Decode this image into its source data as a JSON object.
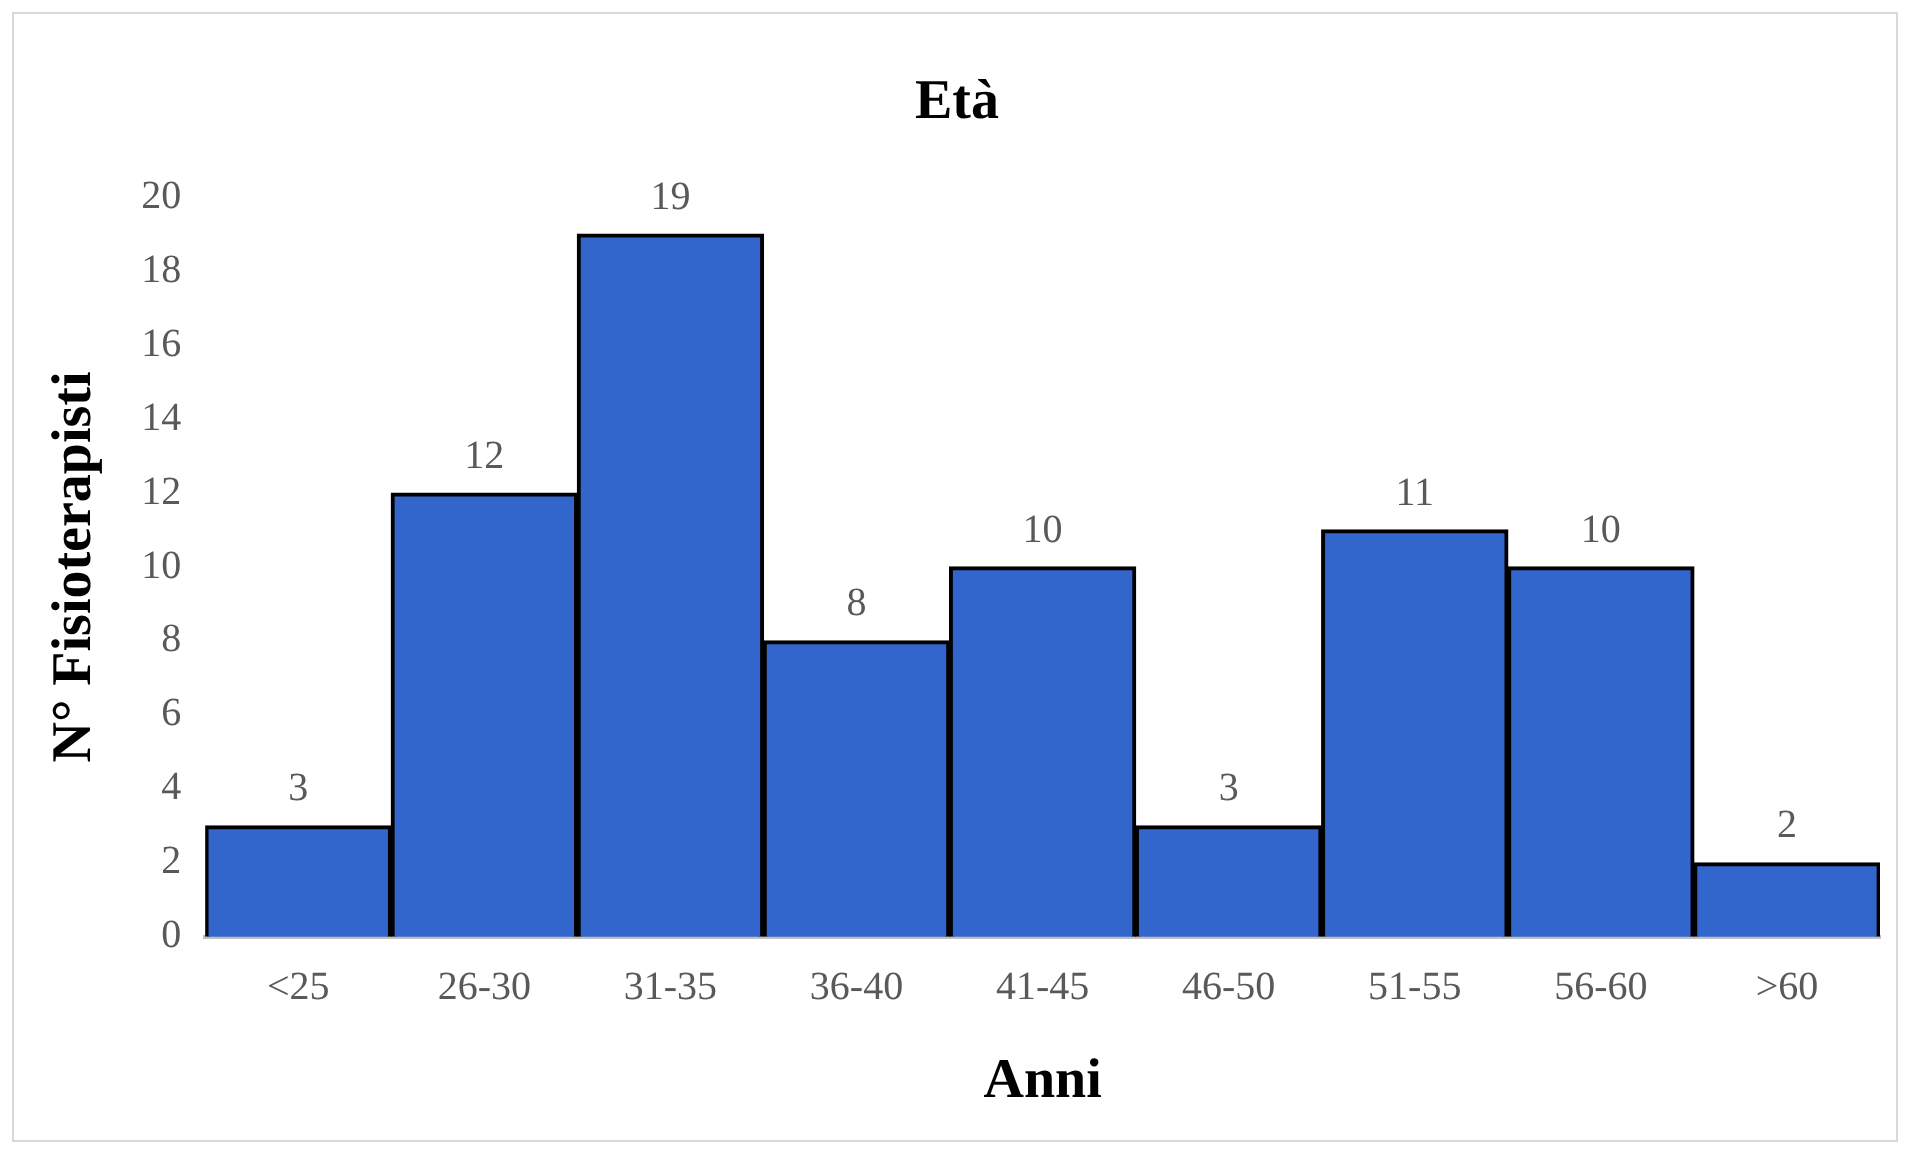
{
  "chart_data": {
    "type": "bar",
    "title": "Età",
    "xlabel": "Anni",
    "ylabel": "N° Fisioterapisti",
    "categories": [
      "<25",
      "26-30",
      "31-35",
      "36-40",
      "41-45",
      "46-50",
      "51-55",
      "56-60",
      ">60"
    ],
    "values": [
      3,
      12,
      19,
      8,
      10,
      3,
      11,
      10,
      2
    ],
    "color": "#3366cc",
    "ylim": [
      0,
      20
    ],
    "yticks": [
      0,
      2,
      4,
      6,
      8,
      10,
      12,
      14,
      16,
      18,
      20
    ],
    "grid": false,
    "legend": false,
    "data_labels": true
  }
}
